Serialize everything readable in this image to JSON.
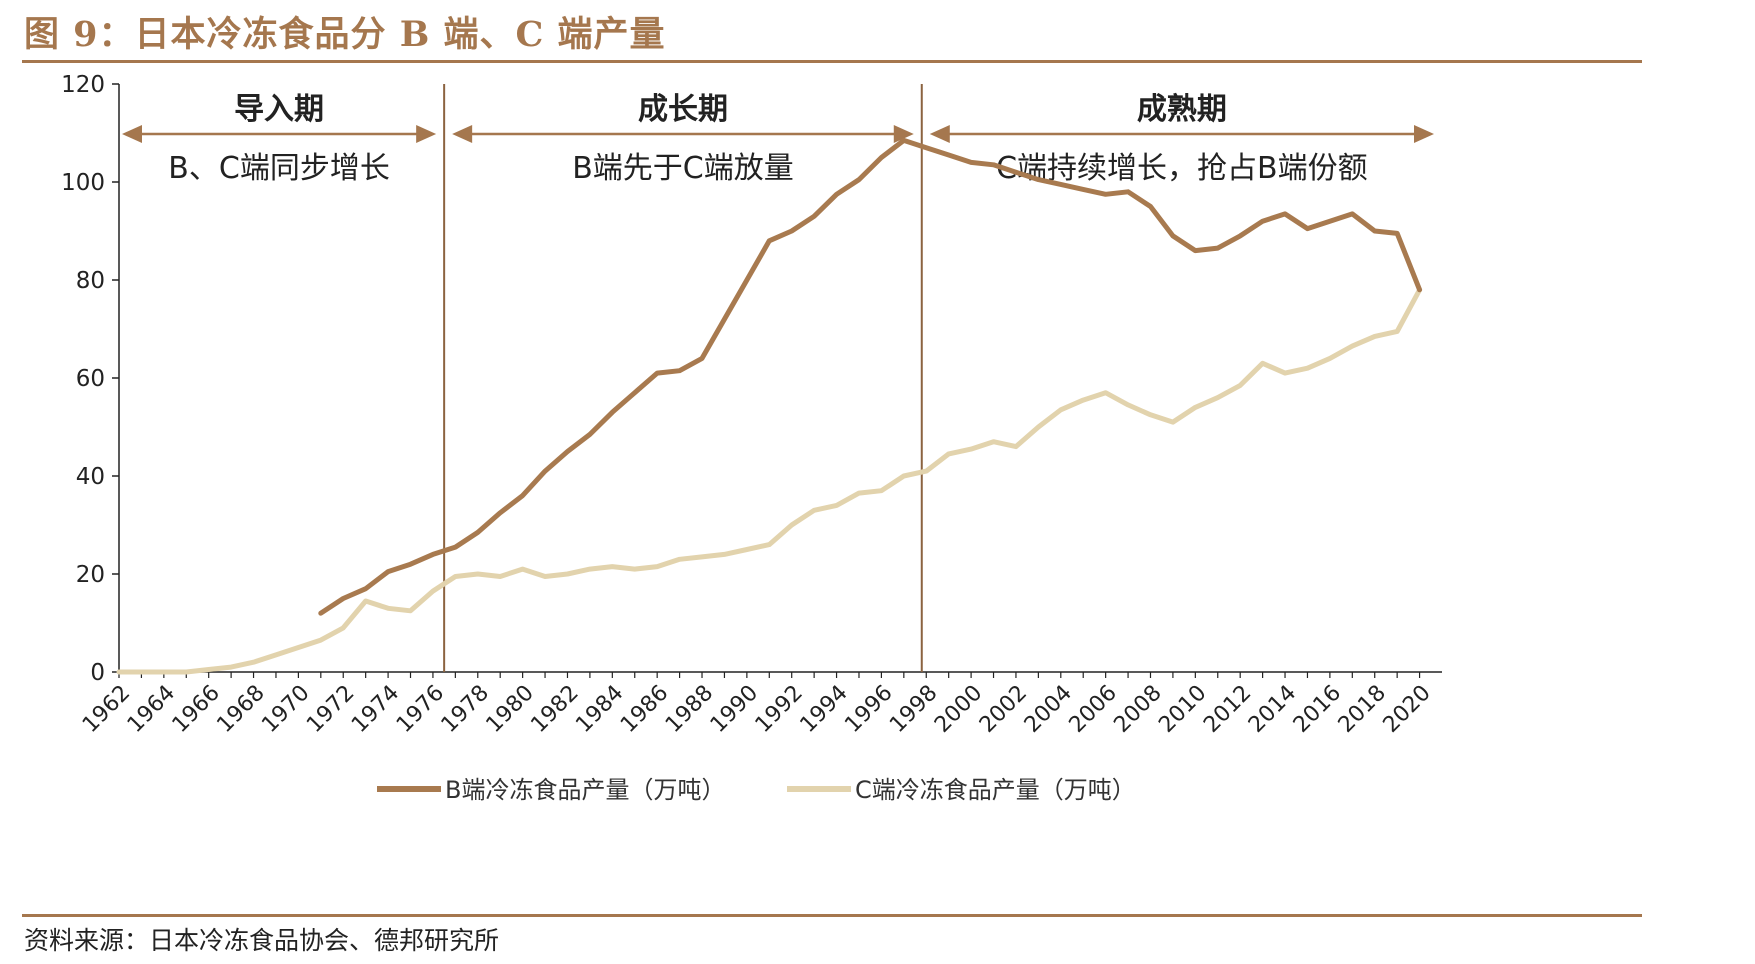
{
  "figure": {
    "title": "图 9：日本冷冻食品分 B 端、C 端产量",
    "source": "资料来源：日本冷冻食品协会、德邦研究所"
  },
  "colors": {
    "accent": "#a5774e",
    "series_b": "#a87a4f",
    "series_c": "#e2d3ad",
    "axis": "#222222",
    "divider": "#8b6340"
  },
  "chart_data": {
    "type": "line",
    "title": "",
    "xlabel": "",
    "ylabel": "",
    "ylim": [
      0,
      120
    ],
    "yticks": [
      0,
      20,
      40,
      60,
      80,
      100,
      120
    ],
    "xlim": [
      1962,
      2021
    ],
    "xticks": [
      "1962",
      "1964",
      "1966",
      "1968",
      "1970",
      "1972",
      "1974",
      "1976",
      "1978",
      "1980",
      "1982",
      "1984",
      "1986",
      "1988",
      "1990",
      "1992",
      "1994",
      "1996",
      "1998",
      "2000",
      "2002",
      "2004",
      "2006",
      "2008",
      "2010",
      "2012",
      "2014",
      "2016",
      "2018",
      "2020"
    ],
    "grid": false,
    "legend_position": "bottom",
    "dividers": [
      1976.5,
      1997.8
    ],
    "phases": [
      {
        "name": "导入期",
        "desc": "B、C端同步增长",
        "from": 1962,
        "to": 1976.5
      },
      {
        "name": "成长期",
        "desc": "B端先于C端放量",
        "from": 1976.5,
        "to": 1997.8
      },
      {
        "name": "成熟期",
        "desc": "C端持续增长，抢占B端份额",
        "from": 1997.8,
        "to": 2021
      }
    ],
    "series": [
      {
        "name": "B端冷冻食品产量（万吨）",
        "x": [
          1971,
          1972,
          1973,
          1974,
          1975,
          1976,
          1977,
          1978,
          1979,
          1980,
          1981,
          1982,
          1983,
          1984,
          1985,
          1986,
          1987,
          1988,
          1989,
          1990,
          1991,
          1992,
          1993,
          1994,
          1995,
          1996,
          1997,
          1998,
          1999,
          2000,
          2001,
          2002,
          2003,
          2004,
          2005,
          2006,
          2007,
          2008,
          2009,
          2010,
          2011,
          2012,
          2013,
          2014,
          2015,
          2016,
          2017,
          2018,
          2019,
          2020
        ],
        "values": [
          12,
          15,
          17,
          20.5,
          22,
          24,
          25.5,
          28.5,
          32.5,
          36,
          41,
          45,
          48.5,
          53,
          57,
          61,
          61.5,
          64,
          72,
          80,
          88,
          90,
          93,
          97.5,
          100.5,
          105,
          108.5,
          107,
          105.5,
          104,
          103.5,
          102,
          100.5,
          99.5,
          98.5,
          97.5,
          98,
          95,
          89,
          86,
          86.5,
          89,
          92,
          93.5,
          90.5,
          92,
          93.5,
          90,
          89.5,
          78
        ]
      },
      {
        "name": "C端冷冻食品产量（万吨）",
        "x": [
          1962,
          1963,
          1964,
          1965,
          1966,
          1967,
          1968,
          1969,
          1970,
          1971,
          1972,
          1973,
          1974,
          1975,
          1976,
          1977,
          1978,
          1979,
          1980,
          1981,
          1982,
          1983,
          1984,
          1985,
          1986,
          1987,
          1988,
          1989,
          1990,
          1991,
          1992,
          1993,
          1994,
          1995,
          1996,
          1997,
          1998,
          1999,
          2000,
          2001,
          2002,
          2003,
          2004,
          2005,
          2006,
          2007,
          2008,
          2009,
          2010,
          2011,
          2012,
          2013,
          2014,
          2015,
          2016,
          2017,
          2018,
          2019,
          2020
        ],
        "values": [
          0,
          0,
          0,
          0,
          0.5,
          1,
          2,
          3.5,
          5,
          6.5,
          9,
          14.5,
          13,
          12.5,
          16.5,
          19.5,
          20,
          19.5,
          21,
          19.5,
          20,
          21,
          21.5,
          21,
          21.5,
          23,
          23.5,
          24,
          25,
          26,
          30,
          33,
          34,
          36.5,
          37,
          40,
          41,
          44.5,
          45.5,
          47,
          46,
          50,
          53.5,
          55.5,
          57,
          54.5,
          52.5,
          51,
          54,
          56,
          58.5,
          63,
          61,
          62,
          64,
          66.5,
          68.5,
          69.5,
          78
        ]
      }
    ]
  }
}
